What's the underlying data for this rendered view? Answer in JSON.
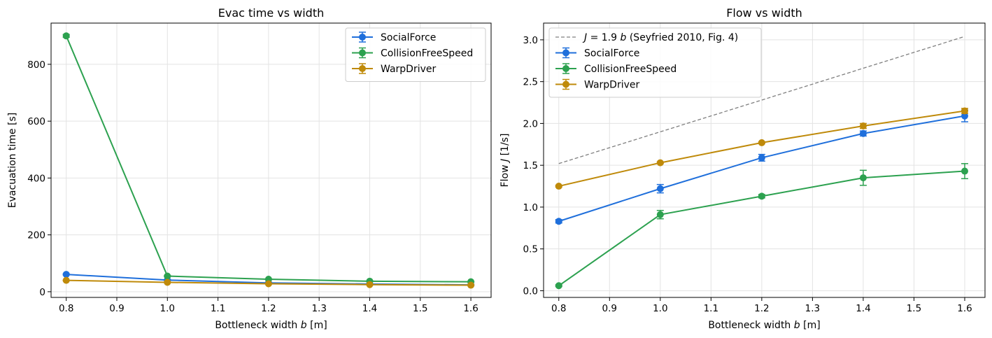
{
  "chart_data": [
    {
      "type": "line",
      "title": "Evac time vs width",
      "xlabel_prefix": "Bottleneck width ",
      "xlabel_var": "b",
      "xlabel_suffix": " [m]",
      "ylabel": "Evacuation time [s]",
      "xlim": [
        0.77,
        1.64
      ],
      "ylim": [
        -20,
        945
      ],
      "xticks": [
        0.8,
        0.9,
        1.0,
        1.1,
        1.2,
        1.3,
        1.4,
        1.5,
        1.6
      ],
      "xtick_labels": [
        "0.8",
        "0.9",
        "1.0",
        "1.1",
        "1.2",
        "1.3",
        "1.4",
        "1.5",
        "1.6"
      ],
      "yticks": [
        0,
        200,
        400,
        600,
        800
      ],
      "ytick_labels": [
        "0",
        "200",
        "400",
        "600",
        "800"
      ],
      "grid": true,
      "legend_position": "upper-right",
      "x": [
        0.8,
        1.0,
        1.2,
        1.4,
        1.6
      ],
      "series": [
        {
          "name": "SocialForce",
          "color": "#1f6fdb",
          "values": [
            61,
            41,
            31,
            27,
            24
          ],
          "err": [
            2,
            2,
            1,
            1,
            1
          ]
        },
        {
          "name": "CollisionFreeSpeed",
          "color": "#2ca14f",
          "values": [
            900,
            55,
            44,
            37,
            35
          ],
          "err": [
            5,
            2,
            1,
            1,
            1
          ]
        },
        {
          "name": "WarpDriver",
          "color": "#bf8a0a",
          "values": [
            40,
            33,
            28,
            25,
            23
          ],
          "err": [
            1,
            1,
            1,
            1,
            1
          ]
        }
      ]
    },
    {
      "type": "line",
      "title": "Flow vs width",
      "xlabel_prefix": "Bottleneck width ",
      "xlabel_var": "b",
      "xlabel_suffix": " [m]",
      "ylabel_prefix": "Flow ",
      "ylabel_var": "J",
      "ylabel_suffix": " [1/s]",
      "xlim": [
        0.77,
        1.64
      ],
      "ylim": [
        -0.08,
        3.2
      ],
      "xticks": [
        0.8,
        0.9,
        1.0,
        1.1,
        1.2,
        1.3,
        1.4,
        1.5,
        1.6
      ],
      "xtick_labels": [
        "0.8",
        "0.9",
        "1.0",
        "1.1",
        "1.2",
        "1.3",
        "1.4",
        "1.5",
        "1.6"
      ],
      "yticks": [
        0.0,
        0.5,
        1.0,
        1.5,
        2.0,
        2.5,
        3.0
      ],
      "ytick_labels": [
        "0.0",
        "0.5",
        "1.0",
        "1.5",
        "2.0",
        "2.5",
        "3.0"
      ],
      "grid": true,
      "legend_position": "upper-left",
      "reference": {
        "label_var": "J",
        "label_mid": " = 1.9 ",
        "label_var2": "b",
        "label_suffix": "  (Seyfried 2010, Fig. 4)",
        "color": "#7f7f7f",
        "x": [
          0.8,
          1.6
        ],
        "values": [
          1.52,
          3.04
        ]
      },
      "x": [
        0.8,
        1.0,
        1.2,
        1.4,
        1.6
      ],
      "series": [
        {
          "name": "SocialForce",
          "color": "#1f6fdb",
          "values": [
            0.83,
            1.22,
            1.59,
            1.88,
            2.09
          ],
          "err": [
            0.02,
            0.05,
            0.04,
            0.03,
            0.07
          ]
        },
        {
          "name": "CollisionFreeSpeed",
          "color": "#2ca14f",
          "values": [
            0.06,
            0.91,
            1.13,
            1.35,
            1.43
          ],
          "err": [
            0.01,
            0.05,
            0.02,
            0.09,
            0.09
          ]
        },
        {
          "name": "WarpDriver",
          "color": "#bf8a0a",
          "values": [
            1.25,
            1.53,
            1.77,
            1.97,
            2.15
          ],
          "err": [
            0.01,
            0.01,
            0.01,
            0.03,
            0.03
          ]
        }
      ]
    }
  ]
}
